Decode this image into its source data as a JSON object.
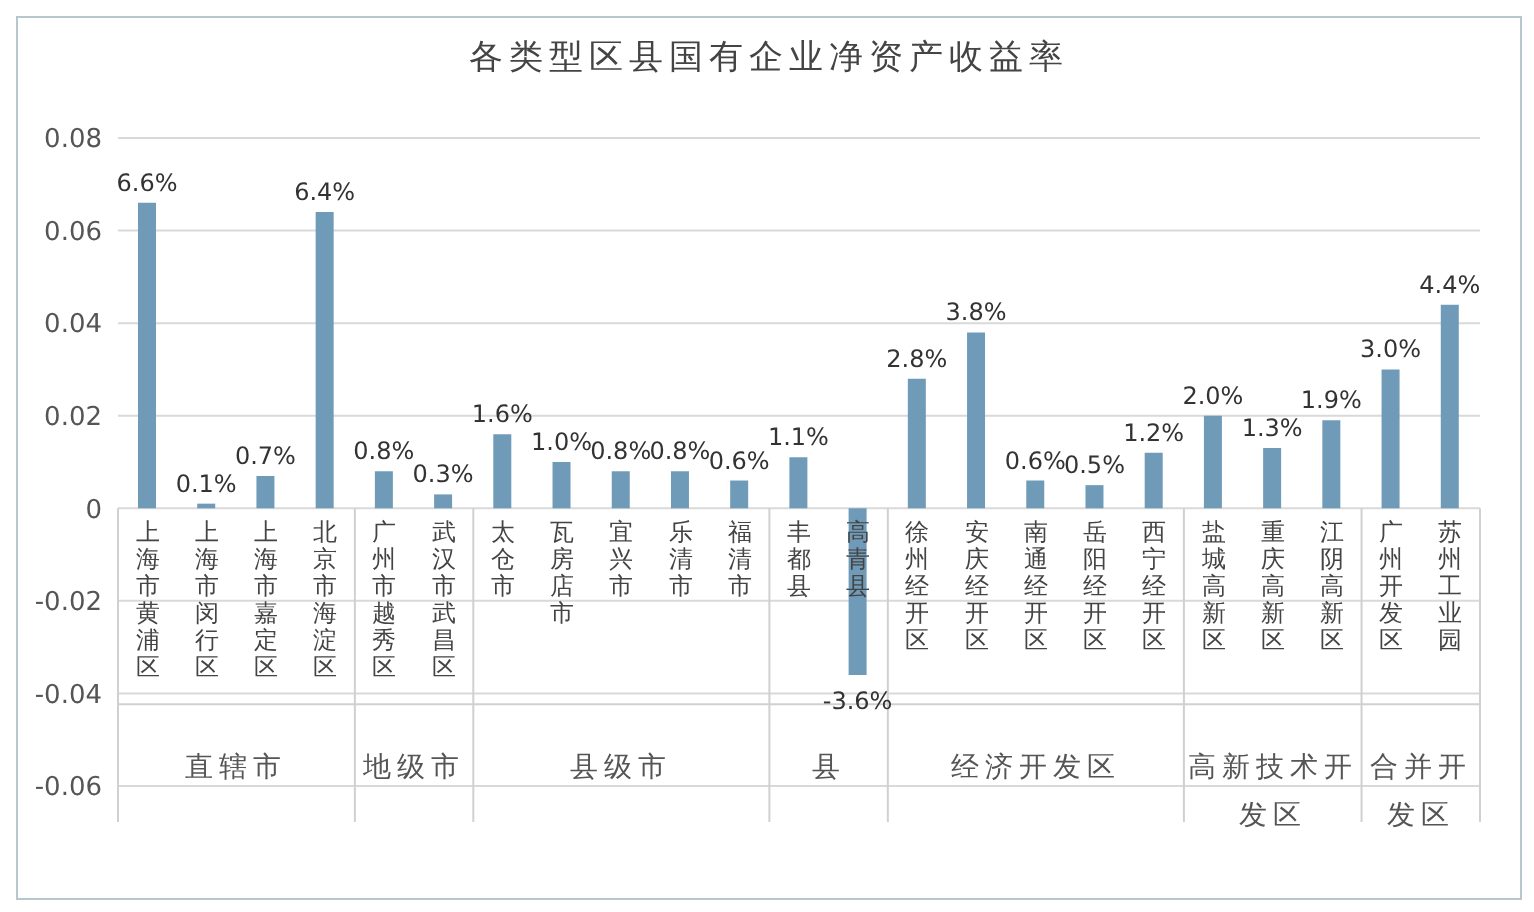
{
  "chart_data": {
    "type": "bar",
    "title": "各类型区县国有企业净资产收益率",
    "categories": [
      "上海市黄浦区",
      "上海市闵行区",
      "上海市嘉定区",
      "北京市海淀区",
      "广州市越秀区",
      "武汉市武昌区",
      "太仓市",
      "瓦房店市",
      "宜兴市",
      "乐清市",
      "福清市",
      "丰都县",
      "高青县",
      "徐州经开区",
      "安庆经开区",
      "南通经开区",
      "岳阳经开区",
      "西宁经开区",
      "盐城高新区",
      "重庆高新区",
      "江阴高新区",
      "广州开发区",
      "苏州工业园"
    ],
    "values": [
      0.066,
      0.001,
      0.007,
      0.064,
      0.008,
      0.003,
      0.016,
      0.01,
      0.008,
      0.008,
      0.006,
      0.011,
      -0.036,
      0.028,
      0.038,
      0.006,
      0.005,
      0.012,
      0.02,
      0.013,
      0.019,
      0.03,
      0.044
    ],
    "value_labels": [
      "6.6%",
      "0.1%",
      "0.7%",
      "6.4%",
      "0.8%",
      "0.3%",
      "1.6%",
      "1.0%",
      "0.8%",
      "0.8%",
      "0.6%",
      "1.1%",
      "-3.6%",
      "2.8%",
      "3.8%",
      "0.6%",
      "0.5%",
      "1.2%",
      "2.0%",
      "1.3%",
      "1.9%",
      "3.0%",
      "4.4%"
    ],
    "color": "#6f9bb8",
    "ylim": [
      -0.06,
      0.08
    ],
    "yticks": [
      -0.06,
      -0.04,
      -0.02,
      0,
      0.02,
      0.04,
      0.06,
      0.08
    ],
    "grid": "y",
    "annotations": [
      "直辖市",
      "地级市",
      "县级市",
      "县",
      "经济开发区",
      "高新技术开发区",
      "合并开发区"
    ]
  }
}
